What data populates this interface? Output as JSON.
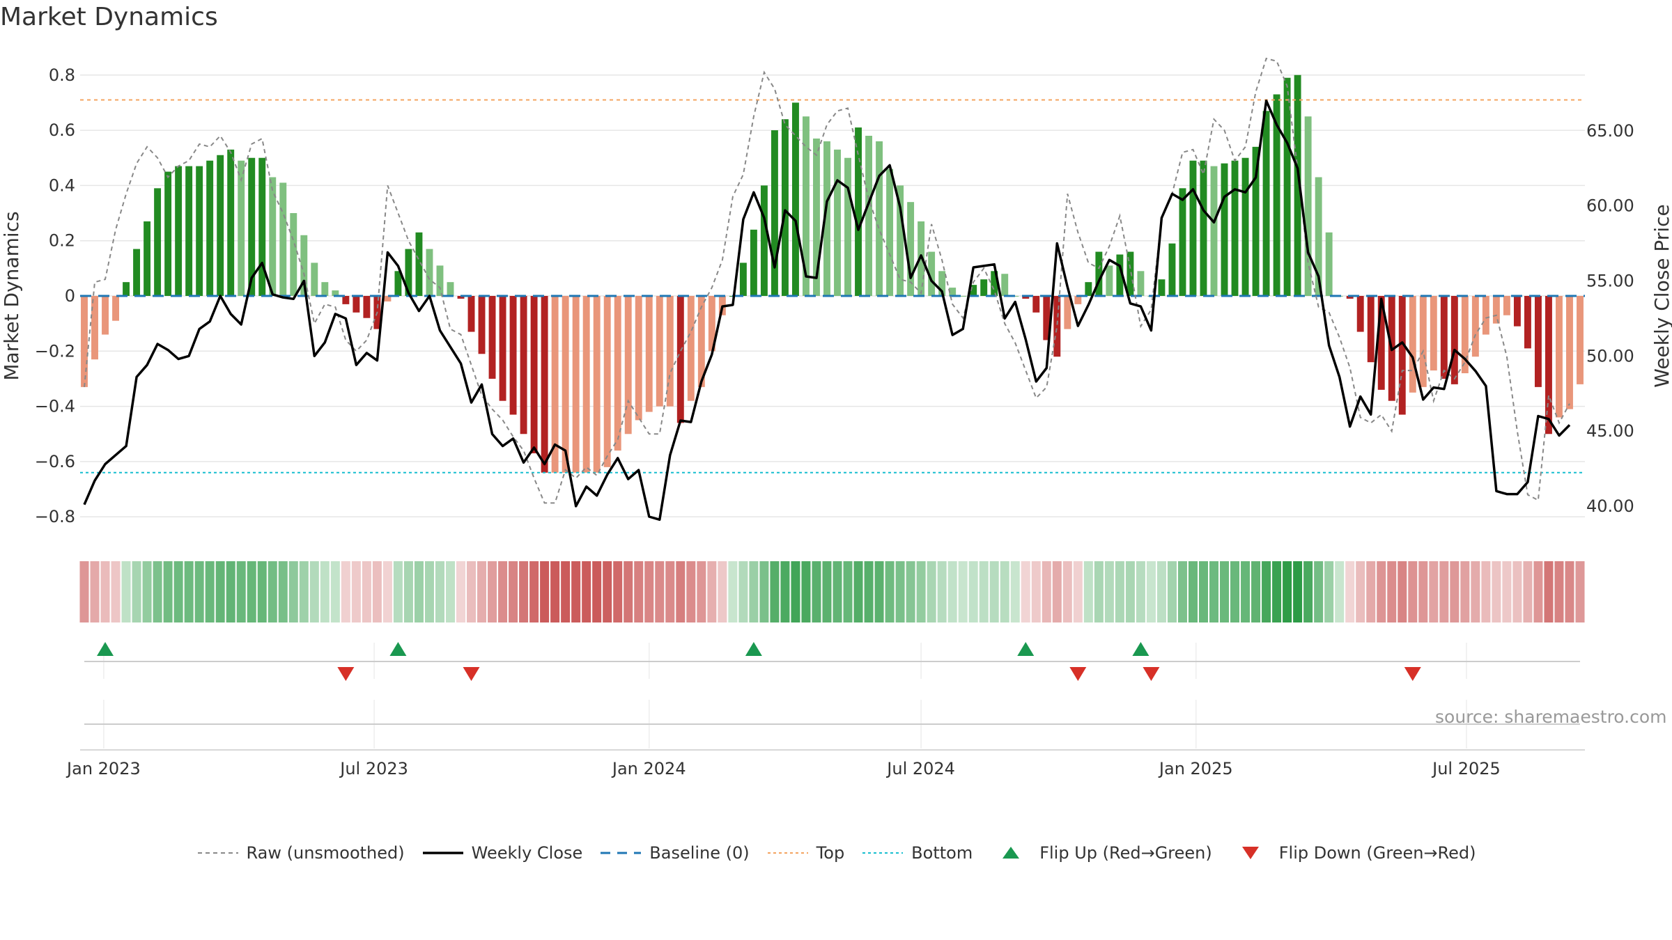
{
  "title": "Market Dynamics",
  "source": "source: sharemaestro.com",
  "chart_data": {
    "type": "bar",
    "title": "Market Dynamics",
    "ylabel": "Market Dynamics",
    "y2label": "Weekly Close Price",
    "ylim": [
      -0.87,
      0.87
    ],
    "y2lim": [
      38.0,
      70.0
    ],
    "yticks": [
      -0.8,
      -0.6,
      -0.4,
      -0.2,
      0,
      0.2,
      0.4,
      0.6,
      0.8
    ],
    "ytick_labels": [
      "−0.8",
      "−0.6",
      "−0.4",
      "−0.2",
      "0",
      "0.2",
      "0.4",
      "0.6",
      "0.8"
    ],
    "y2ticks": [
      40,
      45,
      50,
      55,
      60,
      65
    ],
    "y2tick_labels": [
      "40.00",
      "45.00",
      "50.00",
      "55.00",
      "60.00",
      "65.00"
    ],
    "top_level": 0.71,
    "bottom_level": -0.64,
    "baseline": 0,
    "start_date": "2022-12-19",
    "xticks": [
      {
        "date": "2023-01-01",
        "label": "Jan 2023"
      },
      {
        "date": "2023-07-01",
        "label": "Jul 2023"
      },
      {
        "date": "2024-01-01",
        "label": "Jan 2024"
      },
      {
        "date": "2024-07-01",
        "label": "Jul 2024"
      },
      {
        "date": "2025-01-01",
        "label": "Jan 2025"
      },
      {
        "date": "2025-07-01",
        "label": "Jul 2025"
      }
    ],
    "dynamics": [
      -0.33,
      -0.23,
      -0.14,
      -0.09,
      0.05,
      0.17,
      0.27,
      0.39,
      0.45,
      0.47,
      0.47,
      0.47,
      0.49,
      0.51,
      0.53,
      0.49,
      0.5,
      0.5,
      0.43,
      0.41,
      0.3,
      0.22,
      0.12,
      0.05,
      0.02,
      -0.03,
      -0.06,
      -0.08,
      -0.12,
      -0.02,
      0.09,
      0.17,
      0.23,
      0.17,
      0.11,
      0.05,
      -0.01,
      -0.13,
      -0.21,
      -0.3,
      -0.38,
      -0.43,
      -0.5,
      -0.57,
      -0.64,
      -0.64,
      -0.64,
      -0.64,
      -0.64,
      -0.64,
      -0.62,
      -0.56,
      -0.5,
      -0.45,
      -0.42,
      -0.4,
      -0.4,
      -0.46,
      -0.38,
      -0.33,
      -0.2,
      -0.07,
      0.0,
      0.12,
      0.24,
      0.4,
      0.6,
      0.64,
      0.7,
      0.65,
      0.57,
      0.56,
      0.53,
      0.5,
      0.61,
      0.58,
      0.56,
      0.46,
      0.4,
      0.34,
      0.27,
      0.16,
      0.09,
      0.03,
      0.0,
      0.04,
      0.06,
      0.09,
      0.08,
      0.0,
      -0.01,
      -0.06,
      -0.16,
      -0.22,
      -0.12,
      -0.03,
      0.05,
      0.16,
      0.11,
      0.15,
      0.16,
      0.09,
      0.0,
      0.06,
      0.19,
      0.39,
      0.49,
      0.49,
      0.47,
      0.48,
      0.49,
      0.5,
      0.54,
      0.67,
      0.73,
      0.79,
      0.8,
      0.65,
      0.43,
      0.23,
      0.0,
      -0.01,
      -0.13,
      -0.24,
      -0.34,
      -0.38,
      -0.43,
      -0.35,
      -0.33,
      -0.27,
      -0.3,
      -0.32,
      -0.28,
      -0.22,
      -0.14,
      -0.1,
      -0.07,
      -0.11,
      -0.19,
      -0.33,
      -0.5,
      -0.44,
      -0.41,
      -0.32
    ],
    "raw": [
      -0.33,
      0.05,
      0.06,
      0.24,
      0.37,
      0.48,
      0.54,
      0.5,
      0.43,
      0.47,
      0.49,
      0.55,
      0.54,
      0.58,
      0.52,
      0.42,
      0.55,
      0.57,
      0.38,
      0.3,
      0.2,
      0.08,
      -0.1,
      -0.03,
      -0.04,
      -0.16,
      -0.2,
      -0.16,
      -0.06,
      0.4,
      0.3,
      0.2,
      0.13,
      0.06,
      0.03,
      -0.12,
      -0.14,
      -0.25,
      -0.36,
      -0.41,
      -0.45,
      -0.51,
      -0.56,
      -0.66,
      -0.75,
      -0.75,
      -0.63,
      -0.66,
      -0.62,
      -0.65,
      -0.58,
      -0.52,
      -0.38,
      -0.44,
      -0.5,
      -0.5,
      -0.28,
      -0.2,
      -0.13,
      -0.04,
      0.03,
      0.13,
      0.36,
      0.44,
      0.65,
      0.81,
      0.75,
      0.62,
      0.58,
      0.54,
      0.51,
      0.62,
      0.67,
      0.68,
      0.51,
      0.35,
      0.24,
      0.15,
      0.06,
      0.05,
      0.01,
      0.26,
      0.13,
      -0.03,
      -0.08,
      0.05,
      0.1,
      0.02,
      -0.1,
      -0.17,
      -0.27,
      -0.37,
      -0.33,
      -0.11,
      0.37,
      0.23,
      0.12,
      0.1,
      0.18,
      0.29,
      0.1,
      -0.11,
      -0.05,
      0.28,
      0.37,
      0.52,
      0.53,
      0.44,
      0.64,
      0.6,
      0.49,
      0.54,
      0.74,
      0.86,
      0.85,
      0.76,
      0.46,
      0.12,
      -0.04,
      -0.06,
      -0.15,
      -0.26,
      -0.44,
      -0.46,
      -0.43,
      -0.49,
      -0.27,
      -0.27,
      -0.2,
      -0.38,
      -0.27,
      -0.3,
      -0.24,
      -0.14,
      -0.08,
      -0.07,
      -0.22,
      -0.49,
      -0.72,
      -0.74,
      -0.36,
      -0.46,
      -0.39
    ],
    "close": [
      40.1,
      41.7,
      42.8,
      43.4,
      44.0,
      48.6,
      49.4,
      50.8,
      50.4,
      49.8,
      50.0,
      51.8,
      52.3,
      54.0,
      52.8,
      52.1,
      55.2,
      56.2,
      54.1,
      53.9,
      53.8,
      55.0,
      50.0,
      50.9,
      52.8,
      52.5,
      49.4,
      50.2,
      49.7,
      56.9,
      56.0,
      54.2,
      53.0,
      54.0,
      51.7,
      50.6,
      49.5,
      46.9,
      48.1,
      44.8,
      44.0,
      44.5,
      42.9,
      43.9,
      42.8,
      44.1,
      43.7,
      40.0,
      41.3,
      40.7,
      42.1,
      43.2,
      41.8,
      42.4,
      39.3,
      39.1,
      43.4,
      45.7,
      45.6,
      48.3,
      50.1,
      53.3,
      53.4,
      59.1,
      60.9,
      59.2,
      55.9,
      59.7,
      59.0,
      55.3,
      55.2,
      60.3,
      61.7,
      61.2,
      58.4,
      60.2,
      62.0,
      62.7,
      59.9,
      55.2,
      56.7,
      55.0,
      54.3,
      51.4,
      51.8,
      55.9,
      56.0,
      56.1,
      52.5,
      53.6,
      51.1,
      48.3,
      49.2,
      57.5,
      54.6,
      52.0,
      53.4,
      55.0,
      56.4,
      56.0,
      53.5,
      53.3,
      51.7,
      59.2,
      60.8,
      60.4,
      61.1,
      59.7,
      58.9,
      60.6,
      61.1,
      60.9,
      61.9,
      67.0,
      65.4,
      64.2,
      62.5,
      56.9,
      55.3,
      50.7,
      48.6,
      45.3,
      47.3,
      46.1,
      53.8,
      50.4,
      50.9,
      49.9,
      47.1,
      47.9,
      47.8,
      50.4,
      49.8,
      49.0,
      48.0,
      41.0,
      40.8,
      40.8,
      41.6,
      46.0,
      45.8,
      44.7,
      45.4
    ],
    "flip_up": [
      2,
      30,
      64,
      90,
      101
    ],
    "flip_down": [
      25,
      37,
      95,
      102,
      127
    ]
  },
  "legend": [
    {
      "label": "Raw (unsmoothed)",
      "kind": "dashed",
      "color": "#888888"
    },
    {
      "label": "Weekly Close",
      "kind": "solid",
      "color": "#000000"
    },
    {
      "label": "Baseline (0)",
      "kind": "longdash",
      "color": "#1f77b4"
    },
    {
      "label": "Top",
      "kind": "dotted",
      "color": "#f4a460"
    },
    {
      "label": "Bottom",
      "kind": "dotted",
      "color": "#17becf"
    },
    {
      "label": "Flip Up (Red→Green)",
      "kind": "up",
      "color": "#1a9850"
    },
    {
      "label": "Flip Down (Green→Red)",
      "kind": "down",
      "color": "#d73027"
    }
  ],
  "colors": {
    "dark_green": "#228b22",
    "light_green": "#7fc07f",
    "dark_red": "#b22222",
    "light_red": "#e9967a",
    "grid": "#e6e6e6"
  }
}
